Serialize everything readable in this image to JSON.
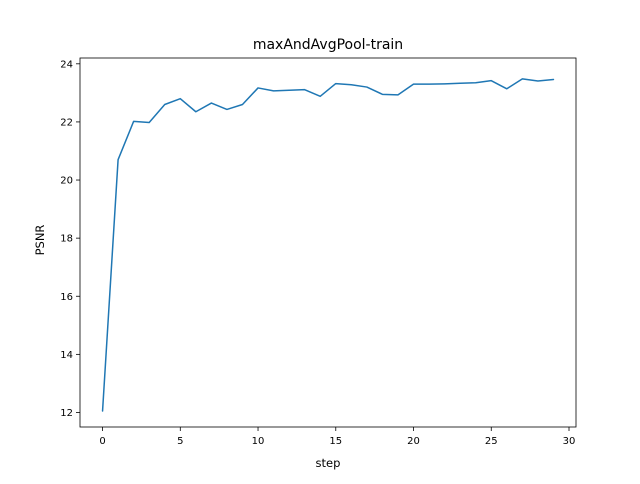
{
  "chart_data": {
    "type": "line",
    "title": "maxAndAvgPool-train",
    "xlabel": "step",
    "ylabel": "PSNR",
    "xlim": [
      -1.45,
      30.45
    ],
    "ylim": [
      11.5,
      24.2
    ],
    "xticks": [
      0,
      5,
      10,
      15,
      20,
      25,
      30
    ],
    "yticks": [
      12,
      14,
      16,
      18,
      20,
      22,
      24
    ],
    "grid": false,
    "series": [
      {
        "color": "#1f77b4",
        "x": [
          0,
          1,
          2,
          3,
          4,
          5,
          6,
          7,
          8,
          9,
          10,
          11,
          12,
          13,
          14,
          15,
          16,
          17,
          18,
          19,
          20,
          21,
          22,
          23,
          24,
          25,
          26,
          27,
          28,
          29
        ],
        "y": [
          12.05,
          20.7,
          22.02,
          21.98,
          22.6,
          22.8,
          22.35,
          22.65,
          22.43,
          22.6,
          23.17,
          23.07,
          23.09,
          23.11,
          22.88,
          23.32,
          23.28,
          23.2,
          22.95,
          22.93,
          23.3,
          23.3,
          23.31,
          23.33,
          23.35,
          23.42,
          23.14,
          23.48,
          23.41,
          23.46
        ]
      }
    ]
  }
}
